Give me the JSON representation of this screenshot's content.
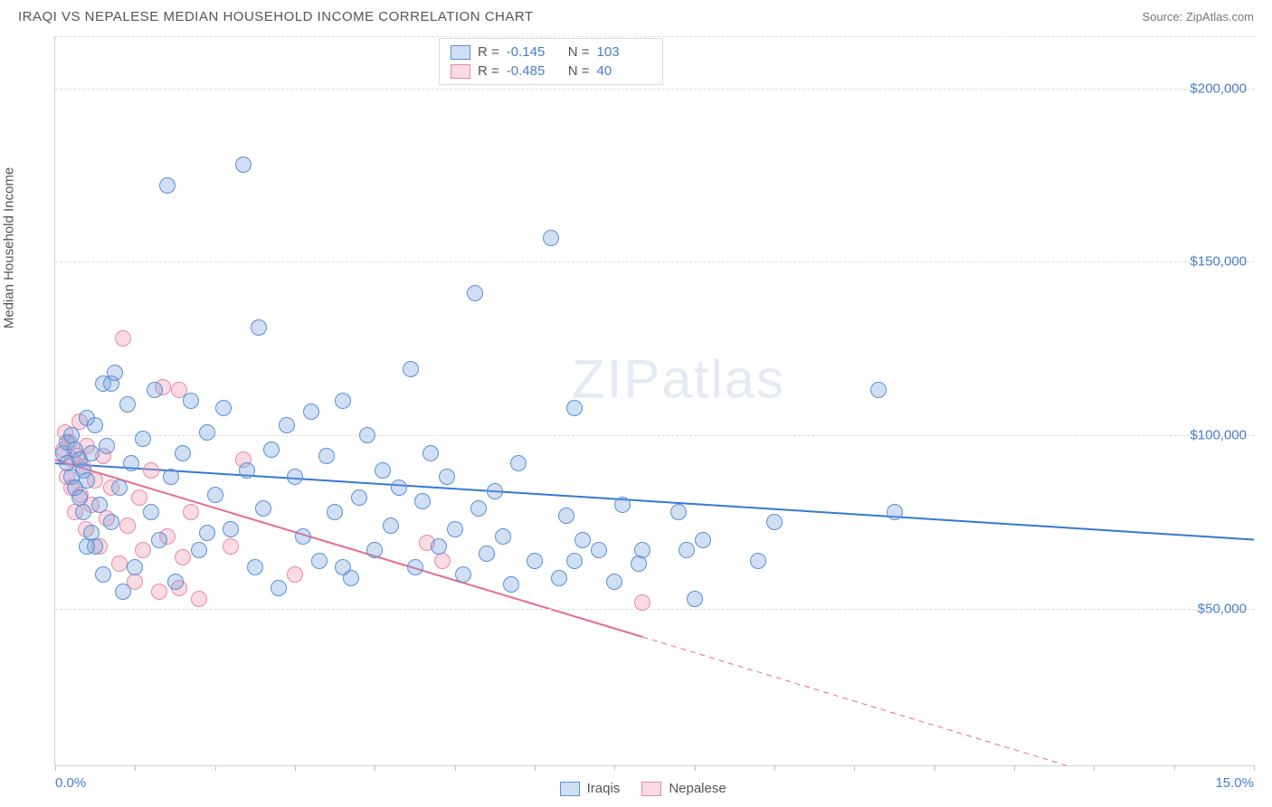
{
  "header": {
    "title": "IRAQI VS NEPALESE MEDIAN HOUSEHOLD INCOME CORRELATION CHART",
    "source": "Source: ZipAtlas.com"
  },
  "watermark": {
    "zip": "ZIP",
    "atlas": "atlas"
  },
  "chart": {
    "type": "scatter",
    "ylabel": "Median Household Income",
    "xlim": [
      0,
      15
    ],
    "ylim": [
      5000,
      215000
    ],
    "x_left_label": "0.0%",
    "x_right_label": "15.0%",
    "yticks": [
      50000,
      100000,
      150000,
      200000
    ],
    "ytick_labels": [
      "$50,000",
      "$100,000",
      "$150,000",
      "$200,000"
    ],
    "xticks": [
      0,
      1,
      2,
      3,
      4,
      5,
      6,
      7,
      8,
      9,
      10,
      11,
      12,
      13,
      14,
      15
    ],
    "grid_color": "#dcdcdc",
    "legend_top": [
      {
        "series": "iraqis",
        "r_label": "R =",
        "r": "-0.145",
        "n_label": "N =",
        "n": "103"
      },
      {
        "series": "nepalese",
        "r_label": "R =",
        "r": "-0.485",
        "n_label": "N =",
        "n": "40"
      }
    ],
    "legend_bottom": [
      {
        "series": "iraqis",
        "label": "Iraqis"
      },
      {
        "series": "nepalese",
        "label": "Nepalese"
      }
    ],
    "series": {
      "iraqis": {
        "fill": "rgba(120,162,222,0.35)",
        "stroke": "#5d8fd6",
        "line_color": "#3676d6",
        "line_width": 2,
        "trend": {
          "x1": 0,
          "y1": 92000,
          "x2": 15,
          "y2": 70000
        },
        "points": [
          [
            0.1,
            95000
          ],
          [
            0.15,
            98000
          ],
          [
            0.15,
            92000
          ],
          [
            0.2,
            88000
          ],
          [
            0.2,
            100000
          ],
          [
            0.25,
            85000
          ],
          [
            0.25,
            96000
          ],
          [
            0.3,
            82000
          ],
          [
            0.3,
            93000
          ],
          [
            0.35,
            90000
          ],
          [
            0.35,
            78000
          ],
          [
            0.4,
            105000
          ],
          [
            0.4,
            87000
          ],
          [
            0.45,
            72000
          ],
          [
            0.45,
            95000
          ],
          [
            0.5,
            68000
          ],
          [
            0.5,
            103000
          ],
          [
            0.55,
            80000
          ],
          [
            0.6,
            115000
          ],
          [
            0.6,
            60000
          ],
          [
            0.65,
            97000
          ],
          [
            0.7,
            75000
          ],
          [
            0.75,
            118000
          ],
          [
            0.8,
            85000
          ],
          [
            0.85,
            55000
          ],
          [
            0.9,
            109000
          ],
          [
            0.95,
            92000
          ],
          [
            1.0,
            62000
          ],
          [
            1.1,
            99000
          ],
          [
            1.2,
            78000
          ],
          [
            1.25,
            113000
          ],
          [
            1.3,
            70000
          ],
          [
            1.4,
            172000
          ],
          [
            1.45,
            88000
          ],
          [
            1.5,
            58000
          ],
          [
            1.6,
            95000
          ],
          [
            1.7,
            110000
          ],
          [
            1.8,
            67000
          ],
          [
            1.9,
            101000
          ],
          [
            2.0,
            83000
          ],
          [
            2.1,
            108000
          ],
          [
            2.2,
            73000
          ],
          [
            2.35,
            178000
          ],
          [
            2.4,
            90000
          ],
          [
            2.5,
            62000
          ],
          [
            2.55,
            131000
          ],
          [
            2.6,
            79000
          ],
          [
            2.7,
            96000
          ],
          [
            2.8,
            56000
          ],
          [
            2.9,
            103000
          ],
          [
            3.0,
            88000
          ],
          [
            3.1,
            71000
          ],
          [
            3.2,
            107000
          ],
          [
            3.3,
            64000
          ],
          [
            3.4,
            94000
          ],
          [
            3.5,
            78000
          ],
          [
            3.6,
            110000
          ],
          [
            3.7,
            59000
          ],
          [
            3.8,
            82000
          ],
          [
            3.9,
            100000
          ],
          [
            4.0,
            67000
          ],
          [
            4.1,
            90000
          ],
          [
            4.2,
            74000
          ],
          [
            4.3,
            85000
          ],
          [
            4.45,
            119000
          ],
          [
            4.5,
            62000
          ],
          [
            4.6,
            81000
          ],
          [
            4.7,
            95000
          ],
          [
            4.8,
            68000
          ],
          [
            4.9,
            88000
          ],
          [
            5.0,
            73000
          ],
          [
            5.1,
            60000
          ],
          [
            5.25,
            141000
          ],
          [
            5.3,
            79000
          ],
          [
            5.4,
            66000
          ],
          [
            5.5,
            84000
          ],
          [
            5.6,
            71000
          ],
          [
            5.7,
            57000
          ],
          [
            5.8,
            92000
          ],
          [
            6.0,
            64000
          ],
          [
            6.2,
            157000
          ],
          [
            6.3,
            59000
          ],
          [
            6.4,
            77000
          ],
          [
            6.5,
            64000
          ],
          [
            6.6,
            70000
          ],
          [
            6.8,
            67000
          ],
          [
            7.0,
            58000
          ],
          [
            7.1,
            80000
          ],
          [
            7.3,
            63000
          ],
          [
            7.35,
            67000
          ],
          [
            7.8,
            78000
          ],
          [
            7.9,
            67000
          ],
          [
            8.0,
            53000
          ],
          [
            8.1,
            70000
          ],
          [
            8.8,
            64000
          ],
          [
            9.0,
            75000
          ],
          [
            10.3,
            113000
          ],
          [
            10.5,
            78000
          ],
          [
            6.5,
            108000
          ],
          [
            0.7,
            115000
          ],
          [
            0.4,
            68000
          ],
          [
            1.9,
            72000
          ],
          [
            3.6,
            62000
          ]
        ]
      },
      "nepalese": {
        "fill": "rgba(240,150,175,0.35)",
        "stroke": "#e88aa5",
        "line_color": "#e86b8f",
        "line_width": 2,
        "trend": {
          "x1": 0,
          "y1": 93000,
          "x2": 7.35,
          "y2": 42000
        },
        "trend_ext": {
          "x1": 7.35,
          "y1": 42000,
          "x2": 14.8,
          "y2": -10000
        },
        "points": [
          [
            0.1,
            96000
          ],
          [
            0.12,
            101000
          ],
          [
            0.15,
            88000
          ],
          [
            0.18,
            98000
          ],
          [
            0.2,
            85000
          ],
          [
            0.22,
            93000
          ],
          [
            0.25,
            78000
          ],
          [
            0.28,
            94000
          ],
          [
            0.3,
            104000
          ],
          [
            0.32,
            83000
          ],
          [
            0.35,
            91000
          ],
          [
            0.38,
            73000
          ],
          [
            0.4,
            97000
          ],
          [
            0.45,
            80000
          ],
          [
            0.5,
            87000
          ],
          [
            0.55,
            68000
          ],
          [
            0.6,
            94000
          ],
          [
            0.65,
            76000
          ],
          [
            0.7,
            85000
          ],
          [
            0.8,
            63000
          ],
          [
            0.85,
            128000
          ],
          [
            0.9,
            74000
          ],
          [
            1.0,
            58000
          ],
          [
            1.05,
            82000
          ],
          [
            1.1,
            67000
          ],
          [
            1.2,
            90000
          ],
          [
            1.3,
            55000
          ],
          [
            1.35,
            114000
          ],
          [
            1.4,
            71000
          ],
          [
            1.55,
            113000
          ],
          [
            1.55,
            56000
          ],
          [
            1.6,
            65000
          ],
          [
            1.7,
            78000
          ],
          [
            1.8,
            53000
          ],
          [
            2.2,
            68000
          ],
          [
            2.35,
            93000
          ],
          [
            3.0,
            60000
          ],
          [
            4.65,
            69000
          ],
          [
            4.85,
            64000
          ],
          [
            7.35,
            52000
          ]
        ]
      }
    }
  }
}
